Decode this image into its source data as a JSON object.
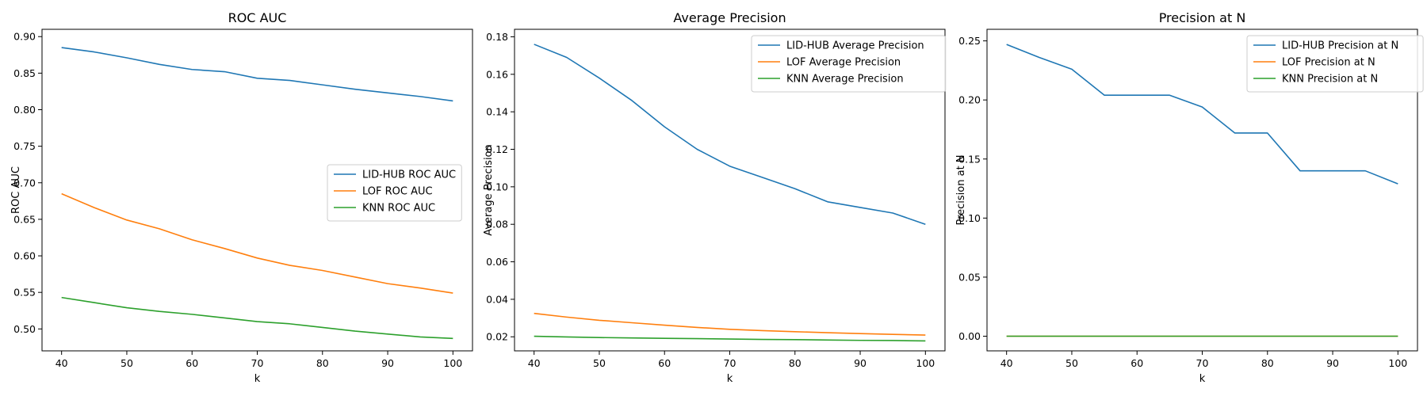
{
  "chart_data": [
    {
      "type": "line",
      "title": "ROC AUC",
      "xlabel": "k",
      "ylabel": "ROC AUC",
      "x": [
        40,
        45,
        50,
        55,
        60,
        65,
        70,
        75,
        80,
        85,
        90,
        95,
        100
      ],
      "xlim": [
        37,
        103
      ],
      "ylim": [
        0.47,
        0.91
      ],
      "xticks": [
        "40",
        "50",
        "60",
        "70",
        "80",
        "90",
        "100"
      ],
      "yticks": [
        "0.50",
        "0.55",
        "0.60",
        "0.65",
        "0.70",
        "0.75",
        "0.80",
        "0.85",
        "0.90"
      ],
      "legend_position": "center-right",
      "grid": false,
      "series": [
        {
          "name": "LID-HUB ROC AUC",
          "color": "#1f77b4",
          "values": [
            0.885,
            0.879,
            0.871,
            0.862,
            0.855,
            0.852,
            0.843,
            0.84,
            0.834,
            0.828,
            0.823,
            0.818,
            0.812
          ]
        },
        {
          "name": "LOF ROC AUC",
          "color": "#ff7f0e",
          "values": [
            0.685,
            0.666,
            0.649,
            0.637,
            0.622,
            0.61,
            0.597,
            0.587,
            0.58,
            0.571,
            0.562,
            0.556,
            0.549
          ]
        },
        {
          "name": "KNN ROC AUC",
          "color": "#2ca02c",
          "values": [
            0.543,
            0.536,
            0.529,
            0.524,
            0.52,
            0.515,
            0.51,
            0.507,
            0.502,
            0.497,
            0.493,
            0.489,
            0.487
          ]
        }
      ]
    },
    {
      "type": "line",
      "title": "Average Precision",
      "xlabel": "k",
      "ylabel": "Average Precision",
      "x": [
        40,
        45,
        50,
        55,
        60,
        65,
        70,
        75,
        80,
        85,
        90,
        95,
        100
      ],
      "xlim": [
        37,
        103
      ],
      "ylim": [
        0.0125,
        0.184
      ],
      "xticks": [
        "40",
        "50",
        "60",
        "70",
        "80",
        "90",
        "100"
      ],
      "yticks": [
        "0.02",
        "0.04",
        "0.06",
        "0.08",
        "0.10",
        "0.12",
        "0.14",
        "0.16",
        "0.18"
      ],
      "legend_position": "top-right",
      "grid": false,
      "series": [
        {
          "name": "LID-HUB Average Precision",
          "color": "#1f77b4",
          "values": [
            0.176,
            0.169,
            0.158,
            0.146,
            0.132,
            0.12,
            0.111,
            0.105,
            0.099,
            0.092,
            0.089,
            0.086,
            0.08
          ]
        },
        {
          "name": "LOF Average Precision",
          "color": "#ff7f0e",
          "values": [
            0.0325,
            0.0305,
            0.0288,
            0.0275,
            0.0262,
            0.025,
            0.024,
            0.0233,
            0.0227,
            0.0222,
            0.0217,
            0.0213,
            0.0209
          ]
        },
        {
          "name": "KNN Average Precision",
          "color": "#2ca02c",
          "values": [
            0.0203,
            0.0199,
            0.0196,
            0.0194,
            0.0192,
            0.019,
            0.0188,
            0.0186,
            0.0185,
            0.0183,
            0.0181,
            0.018,
            0.0178
          ]
        }
      ]
    },
    {
      "type": "line",
      "title": "Precision at N",
      "xlabel": "k",
      "ylabel": "Precision at N",
      "x": [
        40,
        45,
        50,
        55,
        60,
        65,
        70,
        75,
        80,
        85,
        90,
        95,
        100
      ],
      "xlim": [
        37,
        103
      ],
      "ylim": [
        -0.0124,
        0.2598
      ],
      "xticks": [
        "40",
        "50",
        "60",
        "70",
        "80",
        "90",
        "100"
      ],
      "yticks": [
        "0.00",
        "0.05",
        "0.10",
        "0.15",
        "0.20",
        "0.25"
      ],
      "legend_position": "top-right",
      "grid": false,
      "series": [
        {
          "name": "LID-HUB Precision at N",
          "color": "#1f77b4",
          "values": [
            0.247,
            0.236,
            0.226,
            0.204,
            0.204,
            0.204,
            0.194,
            0.172,
            0.172,
            0.14,
            0.14,
            0.14,
            0.129
          ]
        },
        {
          "name": "LOF Precision at N",
          "color": "#ff7f0e",
          "values": [
            0,
            0,
            0,
            0,
            0,
            0,
            0,
            0,
            0,
            0,
            0,
            0,
            0
          ]
        },
        {
          "name": "KNN Precision at N",
          "color": "#2ca02c",
          "values": [
            0,
            0,
            0,
            0,
            0,
            0,
            0,
            0,
            0,
            0,
            0,
            0,
            0
          ]
        }
      ]
    }
  ]
}
